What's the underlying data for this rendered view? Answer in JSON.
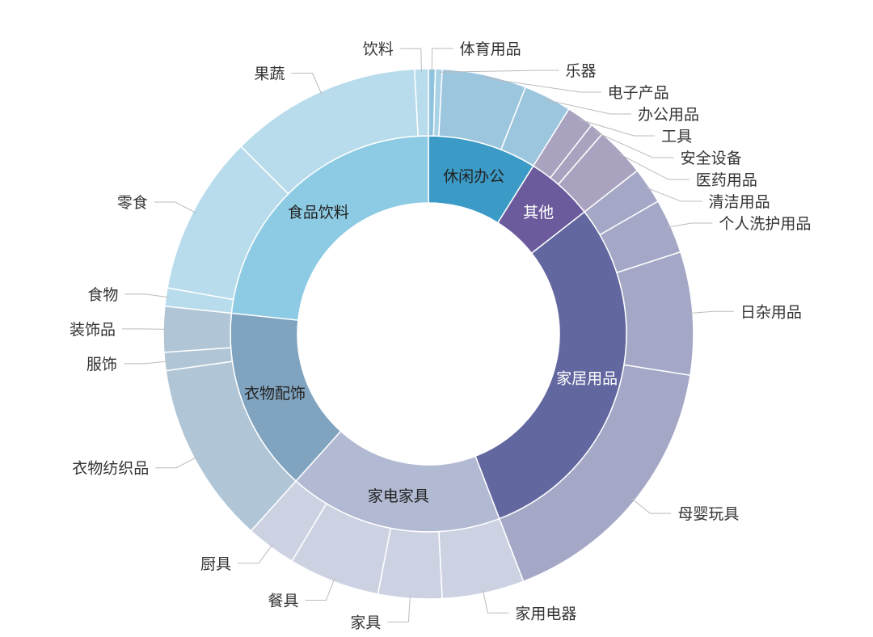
{
  "chart_data": {
    "type": "sunburst",
    "title": "",
    "inner": [
      {
        "name": "休闲办公",
        "color": "#3b9ac6",
        "light_label": false,
        "children": [
          {
            "name": "体育用品",
            "value": 1.5,
            "color": "#8ec3de"
          },
          {
            "name": "乐器",
            "value": 1.5,
            "color": "#a9d2e6"
          },
          {
            "name": "电子产品",
            "value": 18.5,
            "color": "#9cc5de"
          },
          {
            "name": "办公用品",
            "value": 10.5,
            "color": "#9cc5de"
          }
        ]
      },
      {
        "name": "其他",
        "color": "#6b5b9c",
        "light_label": true,
        "children": [
          {
            "name": "工具",
            "value": 6,
            "color": "#aaa3c0"
          },
          {
            "name": "安全设备",
            "value": 3,
            "color": "#aaa3c0"
          },
          {
            "name": "医药用品",
            "value": 11,
            "color": "#aaa3c0"
          }
        ]
      },
      {
        "name": "家居用品",
        "color": "#63679f",
        "light_label": true,
        "children": [
          {
            "name": "清洁用品",
            "value": 8,
            "color": "#a4a8c6"
          },
          {
            "name": "个人洗护用品",
            "value": 12,
            "color": "#a4a8c6"
          },
          {
            "name": "日杂用品",
            "value": 27,
            "color": "#a4a8c6"
          },
          {
            "name": "母婴玩具",
            "value": 60,
            "color": "#a4a8c6"
          }
        ]
      },
      {
        "name": "家电家具",
        "color": "#b2bad3",
        "light_label": false,
        "children": [
          {
            "name": "家用电器",
            "value": 18,
            "color": "#cdd2e3"
          },
          {
            "name": "家具",
            "value": 14,
            "color": "#cdd2e3"
          },
          {
            "name": "餐具",
            "value": 20,
            "color": "#cdd2e3"
          },
          {
            "name": "厨具",
            "value": 11,
            "color": "#cdd2e3"
          }
        ]
      },
      {
        "name": "衣物配饰",
        "color": "#80a4c0",
        "light_label": false,
        "children": [
          {
            "name": "衣物纺织品",
            "value": 40,
            "color": "#b0c6d6"
          },
          {
            "name": "服饰",
            "value": 4,
            "color": "#b0c6d6"
          },
          {
            "name": "装饰品",
            "value": 10,
            "color": "#b0c6d6"
          }
        ]
      },
      {
        "name": "食品饮料",
        "color": "#8dcbe4",
        "light_label": false,
        "children": [
          {
            "name": "食物",
            "value": 4,
            "color": "#b8dcec"
          },
          {
            "name": "零食",
            "value": 35,
            "color": "#b8dcec"
          },
          {
            "name": "果蔬",
            "value": 42,
            "color": "#b8dcec"
          },
          {
            "name": "饮料",
            "value": 3,
            "color": "#b8dcec"
          }
        ]
      }
    ]
  }
}
